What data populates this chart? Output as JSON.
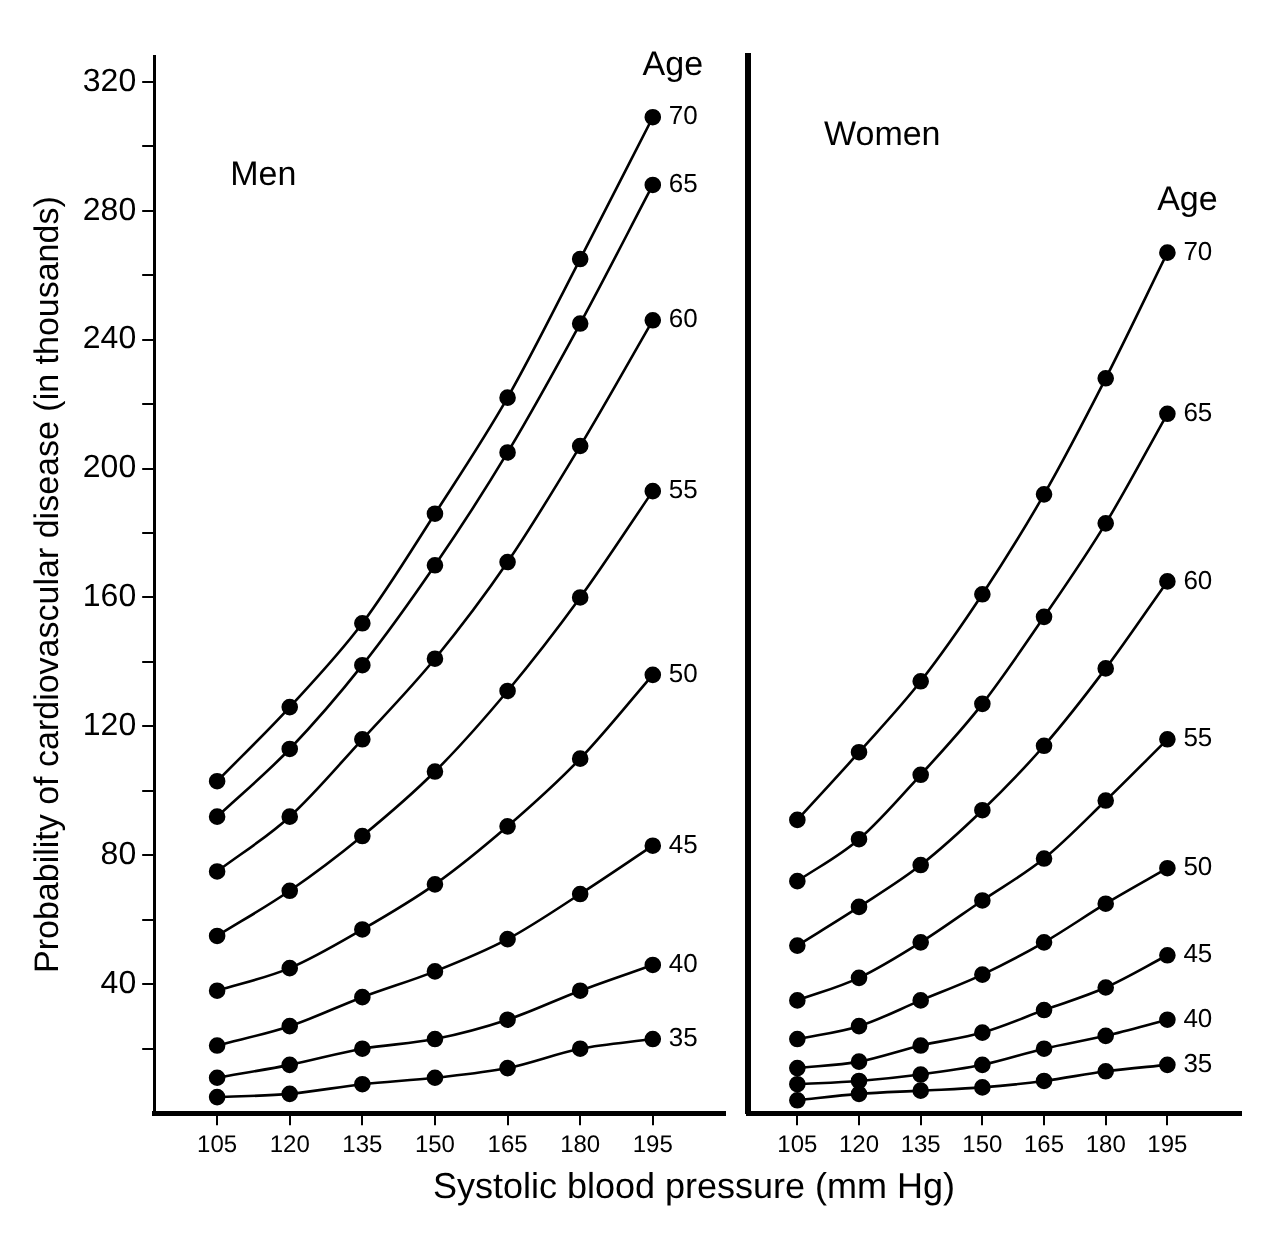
{
  "chart_data": [
    {
      "type": "line",
      "title": "Men",
      "legend_title": "Age",
      "ylabel": "Probability of cardiovascular disease (in thousands)",
      "xlabel": "Systolic blood pressure (mm Hg)",
      "marker": "circle",
      "legend": false,
      "x": [
        105,
        120,
        135,
        150,
        165,
        180,
        195
      ],
      "xlim": [
        92,
        210
      ],
      "xticks": [
        105,
        120,
        135,
        150,
        165,
        180,
        195
      ],
      "ylim": [
        0,
        328
      ],
      "yticks": [
        {
          "value": 20,
          "label": null
        },
        40,
        {
          "value": 60,
          "label": null
        },
        80,
        {
          "value": 100,
          "label": null
        },
        120,
        {
          "value": 140,
          "label": null
        },
        160,
        {
          "value": 180,
          "label": null
        },
        200,
        {
          "value": 220,
          "label": null
        },
        240,
        {
          "value": 260,
          "label": null
        },
        280,
        {
          "value": 300,
          "label": null
        },
        320
      ],
      "series": [
        {
          "name": "70",
          "color": "#000000",
          "values": [
            103,
            126,
            152,
            186,
            222,
            265,
            309
          ]
        },
        {
          "name": "65",
          "color": "#000000",
          "values": [
            92,
            113,
            139,
            170,
            205,
            245,
            288
          ]
        },
        {
          "name": "60",
          "color": "#000000",
          "values": [
            75,
            92,
            116,
            141,
            171,
            207,
            246
          ]
        },
        {
          "name": "55",
          "color": "#000000",
          "values": [
            55,
            69,
            86,
            106,
            131,
            160,
            193
          ]
        },
        {
          "name": "50",
          "color": "#000000",
          "values": [
            38,
            45,
            57,
            71,
            89,
            110,
            136
          ]
        },
        {
          "name": "45",
          "color": "#000000",
          "values": [
            21,
            27,
            36,
            44,
            54,
            68,
            83
          ]
        },
        {
          "name": "40",
          "color": "#000000",
          "values": [
            11,
            15,
            20,
            23,
            29,
            38,
            46
          ]
        },
        {
          "name": "35",
          "color": "#000000",
          "values": [
            5,
            6,
            9,
            11,
            14,
            20,
            23
          ]
        }
      ]
    },
    {
      "type": "line",
      "title": "Women",
      "legend_title": "Age",
      "marker": "circle",
      "legend": false,
      "tick_labels": "x",
      "x": [
        105,
        120,
        135,
        150,
        165,
        180,
        195
      ],
      "xlim": [
        93,
        213
      ],
      "xticks": [
        105,
        120,
        135,
        150,
        165,
        180,
        195
      ],
      "ylim": [
        0,
        328
      ],
      "series": [
        {
          "name": "70",
          "color": "#000000",
          "values": [
            91,
            112,
            134,
            161,
            192,
            228,
            267
          ]
        },
        {
          "name": "65",
          "color": "#000000",
          "values": [
            72,
            85,
            105,
            127,
            154,
            183,
            217
          ]
        },
        {
          "name": "60",
          "color": "#000000",
          "values": [
            52,
            64,
            77,
            94,
            114,
            138,
            165
          ]
        },
        {
          "name": "55",
          "color": "#000000",
          "values": [
            35,
            42,
            53,
            66,
            79,
            97,
            116
          ]
        },
        {
          "name": "50",
          "color": "#000000",
          "values": [
            23,
            27,
            35,
            43,
            53,
            65,
            76
          ]
        },
        {
          "name": "45",
          "color": "#000000",
          "values": [
            14,
            16,
            21,
            25,
            32,
            39,
            49
          ]
        },
        {
          "name": "40",
          "color": "#000000",
          "values": [
            9,
            10,
            12,
            15,
            20,
            24,
            29
          ]
        },
        {
          "name": "35",
          "color": "#000000",
          "values": [
            4,
            6,
            7,
            8,
            10,
            13,
            15
          ]
        }
      ]
    }
  ]
}
